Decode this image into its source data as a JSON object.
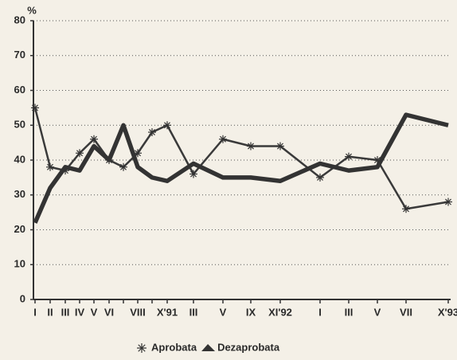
{
  "chart_data": {
    "type": "line",
    "y_label": "%",
    "categories": [
      "I",
      "II",
      "III",
      "IV",
      "V",
      "VI",
      null,
      "VIII",
      null,
      "X'91",
      "III",
      "V",
      "IX",
      "XI'92",
      "I",
      "III",
      "V",
      "VII",
      "X'93"
    ],
    "series": [
      {
        "name": "Aprobata",
        "color": "#3a3a3a",
        "marker": "asterisk",
        "values": [
          55,
          38,
          37,
          42,
          46,
          40,
          38,
          42,
          48,
          50,
          36,
          46,
          44,
          44,
          35,
          41,
          40,
          26,
          28
        ]
      },
      {
        "name": "Dezaprobata",
        "color": "#333333",
        "marker": "thick",
        "values": [
          22,
          32,
          38,
          37,
          44,
          40,
          50,
          38,
          35,
          34,
          39,
          35,
          35,
          34,
          39,
          37,
          38,
          53,
          50
        ]
      }
    ],
    "ylim": [
      0,
      80
    ],
    "yticks": [
      0,
      10,
      20,
      30,
      40,
      50,
      60,
      70,
      80
    ],
    "grid": true,
    "legend": "bottom"
  }
}
